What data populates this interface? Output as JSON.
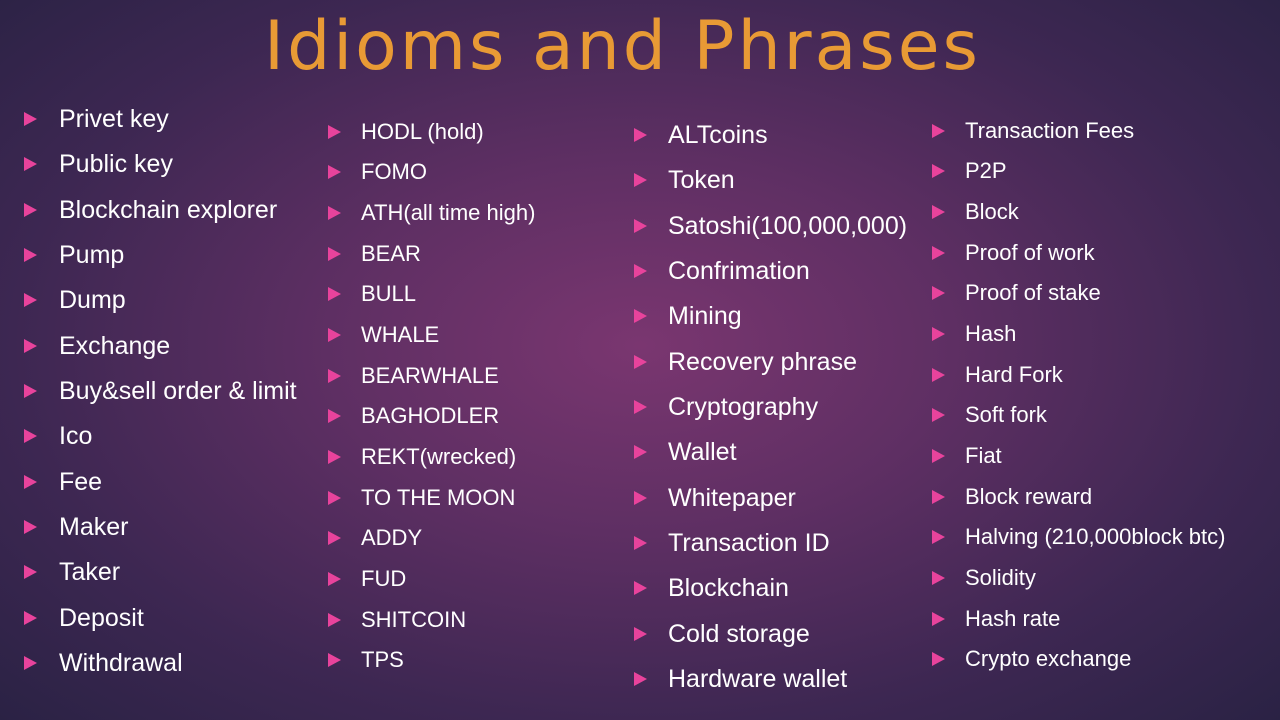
{
  "title": "Idioms and Phrases",
  "colors": {
    "title": "#e89a35",
    "bullet": "#e8439c",
    "text": "#ffffff"
  },
  "columns": [
    [
      "Privet key",
      "Public key",
      "Blockchain explorer",
      "Pump",
      "Dump",
      "Exchange",
      "Buy&sell  order & limit",
      "Ico",
      "Fee",
      "Maker",
      "Taker",
      "Deposit",
      "Withdrawal"
    ],
    [
      "HODL (hold)",
      "FOMO",
      "ATH(all time high)",
      "BEAR",
      "BULL",
      "WHALE",
      "BEARWHALE",
      "BAGHODLER",
      "REKT(wrecked)",
      "TO THE MOON",
      "ADDY",
      "FUD",
      "SHITCOIN",
      "TPS"
    ],
    [
      "ALTcoins",
      "Token",
      "Satoshi(100,000,000)",
      "Confrimation",
      "Mining",
      "Recovery phrase",
      "Cryptography",
      "Wallet",
      "Whitepaper",
      "Transaction ID",
      "Blockchain",
      "Cold storage",
      "Hardware wallet"
    ],
    [
      "Transaction Fees",
      "P2P",
      "Block",
      "Proof of work",
      "Proof of stake",
      "Hash",
      "Hard Fork",
      "Soft fork",
      "Fiat",
      "Block reward",
      "Halving (210,000block btc)",
      "Solidity",
      "Hash rate",
      "Crypto exchange"
    ]
  ]
}
